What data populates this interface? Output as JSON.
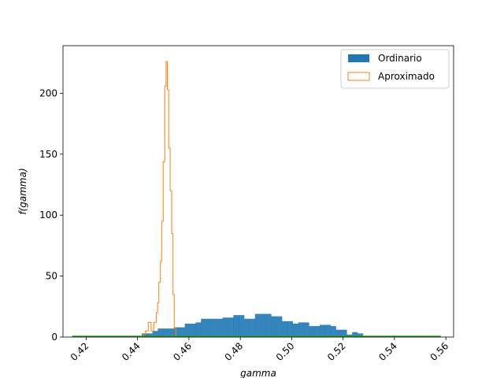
{
  "chart_data": {
    "type": "histogram",
    "title": "",
    "xlabel": "gamma",
    "ylabel": "f(gamma)",
    "xlim": [
      0.411,
      0.563
    ],
    "ylim": [
      0,
      239
    ],
    "xticks": [
      "0.42",
      "0.44",
      "0.46",
      "0.48",
      "0.50",
      "0.52",
      "0.54",
      "0.56"
    ],
    "yticks": [
      "0",
      "50",
      "100",
      "150",
      "200"
    ],
    "xtick_values": [
      0.42,
      0.44,
      0.46,
      0.48,
      0.5,
      0.52,
      0.54,
      0.56
    ],
    "ytick_values": [
      0,
      50,
      100,
      150,
      200
    ],
    "grid": false,
    "legend": {
      "position": "upper right",
      "entries": [
        "Ordinario",
        "Aproximado"
      ]
    },
    "series": [
      {
        "name": "Ordinario",
        "kind": "filled-histogram",
        "color": "#1f77b4",
        "edges": [
          0.4416,
          0.4437,
          0.4458,
          0.4479,
          0.45,
          0.4521,
          0.4542,
          0.4563,
          0.4584,
          0.4605,
          0.4626,
          0.4647,
          0.4668,
          0.4689,
          0.471,
          0.4731,
          0.4752,
          0.4773,
          0.4794,
          0.4815,
          0.4836,
          0.4857,
          0.4878,
          0.4899,
          0.492,
          0.4941,
          0.4962,
          0.4983,
          0.5004,
          0.5025,
          0.5046,
          0.5067,
          0.5088,
          0.5109,
          0.513,
          0.5151,
          0.5172,
          0.5193,
          0.5214,
          0.5235,
          0.5256,
          0.5277
        ],
        "values": [
          3,
          3,
          5,
          7,
          7,
          7,
          8,
          8,
          11,
          11,
          12,
          15,
          15,
          15,
          15,
          16,
          16,
          18,
          18,
          15,
          15,
          19,
          19,
          19,
          17,
          17,
          13,
          13,
          11,
          12,
          12,
          9,
          9,
          10,
          10,
          9,
          6,
          6,
          2,
          4,
          3
        ]
      },
      {
        "name": "Aproximado",
        "kind": "step-histogram",
        "color": "#ff7f0e",
        "edges": [
          0.442,
          0.4431,
          0.4442,
          0.4453,
          0.4463,
          0.4473,
          0.4478,
          0.4483,
          0.4489,
          0.4494,
          0.45,
          0.4506,
          0.4511,
          0.4516,
          0.4521,
          0.4527,
          0.4533,
          0.4538,
          0.4543,
          0.4549,
          0.4554
        ],
        "values": [
          2,
          5,
          12,
          5,
          12,
          20,
          28,
          45,
          62,
          95,
          144,
          206,
          226,
          203,
          155,
          120,
          85,
          35,
          7,
          1
        ]
      },
      {
        "kind": "line",
        "color": "#2ca02c",
        "x": [
          0.4145,
          0.558
        ],
        "y": [
          0.5,
          0.5
        ]
      }
    ]
  }
}
